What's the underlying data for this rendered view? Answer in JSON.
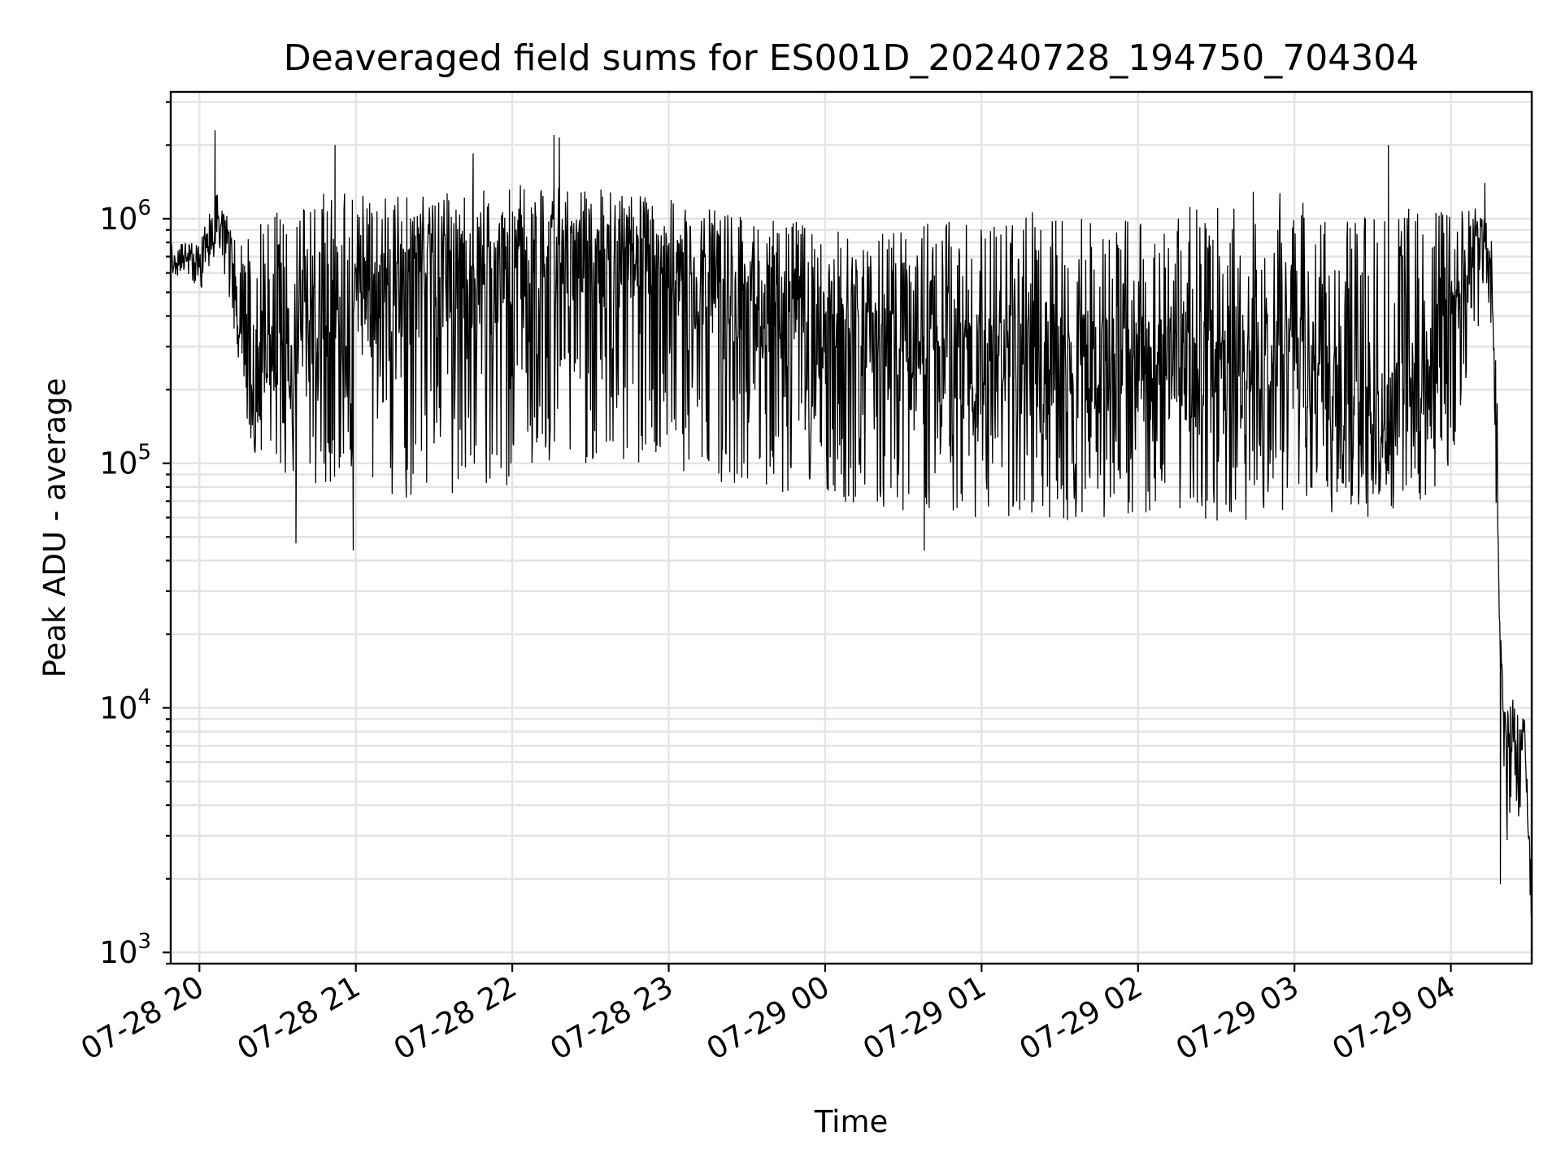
{
  "chart_data": {
    "type": "line",
    "title": "Deaveraged field sums for ES001D_20240728_194750_704304",
    "xlabel": "Time",
    "ylabel": "Peak ADU - average",
    "yscale": "log",
    "ylim": [
      900,
      3300000
    ],
    "xlim": [
      "2024-07-28 19:49",
      "2024-07-29 04:31"
    ],
    "grid": true,
    "x_ticks": [
      {
        "value": "2024-07-28 20:00",
        "label": "07-28 20"
      },
      {
        "value": "2024-07-28 21:00",
        "label": "07-28 21"
      },
      {
        "value": "2024-07-28 22:00",
        "label": "07-28 22"
      },
      {
        "value": "2024-07-28 23:00",
        "label": "07-28 23"
      },
      {
        "value": "2024-07-29 00:00",
        "label": "07-29 00"
      },
      {
        "value": "2024-07-29 01:00",
        "label": "07-29 01"
      },
      {
        "value": "2024-07-29 02:00",
        "label": "07-29 02"
      },
      {
        "value": "2024-07-29 03:00",
        "label": "07-29 03"
      },
      {
        "value": "2024-07-29 04:00",
        "label": "07-29 04"
      }
    ],
    "y_ticks": [
      {
        "value": 1000,
        "base": "10",
        "exp": "3"
      },
      {
        "value": 10000,
        "base": "10",
        "exp": "4"
      },
      {
        "value": 100000,
        "base": "10",
        "exp": "5"
      },
      {
        "value": 1000000,
        "base": "10",
        "exp": "6"
      }
    ],
    "series": [
      {
        "color": "#000000",
        "x": [
          "2024-07-28 19:49",
          "2024-07-28 19:55",
          "2024-07-28 20:00",
          "2024-07-28 20:05",
          "2024-07-28 20:08",
          "2024-07-28 20:12",
          "2024-07-28 20:15",
          "2024-07-28 20:20",
          "2024-07-28 20:30",
          "2024-07-28 20:40",
          "2024-07-28 20:50",
          "2024-07-28 21:00",
          "2024-07-28 21:15",
          "2024-07-28 21:30",
          "2024-07-28 21:45",
          "2024-07-28 22:00",
          "2024-07-28 22:15",
          "2024-07-28 22:30",
          "2024-07-28 22:45",
          "2024-07-28 23:00",
          "2024-07-28 23:15",
          "2024-07-28 23:30",
          "2024-07-28 23:45",
          "2024-07-29 00:00",
          "2024-07-29 00:15",
          "2024-07-29 00:30",
          "2024-07-29 00:45",
          "2024-07-29 01:00",
          "2024-07-29 01:15",
          "2024-07-29 01:30",
          "2024-07-29 01:45",
          "2024-07-29 02:00",
          "2024-07-29 02:15",
          "2024-07-29 02:30",
          "2024-07-29 02:45",
          "2024-07-29 03:00",
          "2024-07-29 03:15",
          "2024-07-29 03:30",
          "2024-07-29 03:45",
          "2024-07-29 04:00",
          "2024-07-29 04:10",
          "2024-07-29 04:13",
          "2024-07-29 04:16",
          "2024-07-29 04:18",
          "2024-07-29 04:20",
          "2024-07-29 04:22",
          "2024-07-29 04:24",
          "2024-07-29 04:26",
          "2024-07-29 04:28",
          "2024-07-29 04:31"
        ],
        "y": [
          650000,
          700000,
          600000,
          850000,
          1000000,
          750000,
          400000,
          250000,
          300000,
          350000,
          400000,
          450000,
          500000,
          550000,
          550000,
          650000,
          700000,
          700000,
          650000,
          600000,
          500000,
          450000,
          400000,
          350000,
          300000,
          250000,
          250000,
          250000,
          250000,
          250000,
          250000,
          250000,
          250000,
          250000,
          300000,
          350000,
          180000,
          150000,
          200000,
          350000,
          800000,
          900000,
          500000,
          50000,
          10000,
          7000,
          8000,
          5000,
          9000,
          1300
        ],
        "band_low": [
          600000,
          550000,
          500000,
          650000,
          700000,
          450000,
          250000,
          100000,
          90000,
          85000,
          80000,
          80000,
          70000,
          65000,
          75000,
          80000,
          90000,
          100000,
          95000,
          90000,
          85000,
          80000,
          75000,
          70000,
          65000,
          60000,
          60000,
          60000,
          58000,
          58000,
          60000,
          60000,
          60000,
          55000,
          60000,
          65000,
          60000,
          60000,
          65000,
          85000,
          300000,
          500000,
          300000,
          30000,
          6000,
          2000,
          4000,
          3500,
          5000,
          1300
        ],
        "band_high": [
          800000,
          800000,
          800000,
          1200000,
          1300000,
          900000,
          800000,
          900000,
          1100000,
          1200000,
          1300000,
          1300000,
          1300000,
          1300000,
          1300000,
          1400000,
          1400000,
          1350000,
          1300000,
          1200000,
          1100000,
          1000000,
          1000000,
          900000,
          900000,
          900000,
          1000000,
          1000000,
          1100000,
          1000000,
          1000000,
          1000000,
          1100000,
          1200000,
          1300000,
          1300000,
          1000000,
          1100000,
          1100000,
          1100000,
          1100000,
          1000000,
          800000,
          150000,
          12000,
          10000,
          11000,
          9000,
          10000,
          2000
        ],
        "spikes": [
          {
            "x": "2024-07-28 20:06",
            "y": 2300000
          },
          {
            "x": "2024-07-28 20:52",
            "y": 2000000
          },
          {
            "x": "2024-07-28 20:59",
            "y": 44000
          },
          {
            "x": "2024-07-28 21:45",
            "y": 1850000
          },
          {
            "x": "2024-07-28 22:16",
            "y": 2200000
          },
          {
            "x": "2024-07-28 22:18",
            "y": 2150000
          },
          {
            "x": "2024-07-28 20:37",
            "y": 47000
          },
          {
            "x": "2024-07-29 00:38",
            "y": 44000
          },
          {
            "x": "2024-07-29 03:36",
            "y": 2000000
          },
          {
            "x": "2024-07-29 04:13",
            "y": 1400000
          },
          {
            "x": "2024-07-29 04:19",
            "y": 1900
          }
        ]
      }
    ]
  }
}
